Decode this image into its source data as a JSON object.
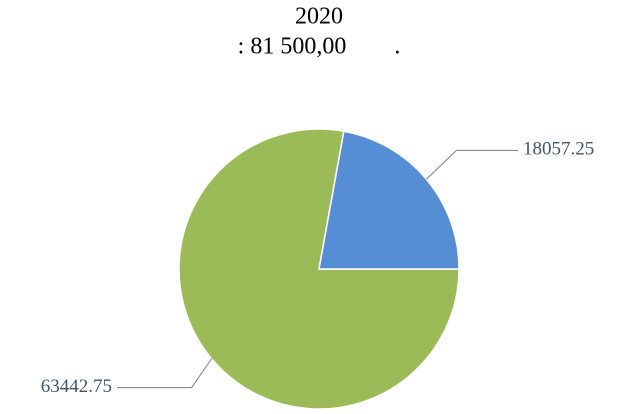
{
  "chart_data": {
    "type": "pie",
    "title": [
      "2020",
      ": 81 500,00        ."
    ],
    "categories": [
      null,
      null
    ],
    "values": [
      63442.75,
      18057.25
    ],
    "colors": [
      "#9bbb59",
      "#558ed5"
    ]
  }
}
